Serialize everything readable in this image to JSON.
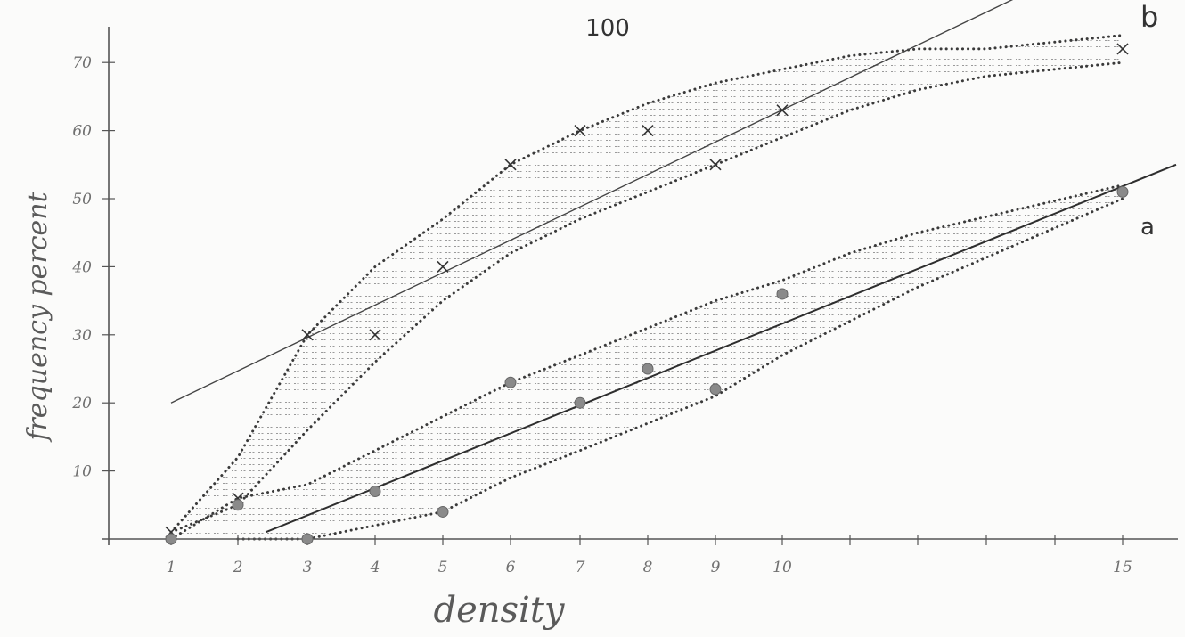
{
  "chart_data": {
    "type": "scatter",
    "title": "100",
    "xlabel": "density",
    "ylabel": "frequency percent",
    "x_ticks": [
      "1",
      "2",
      "3",
      "4",
      "5",
      "6",
      "7",
      "8",
      "9",
      "10",
      "15"
    ],
    "y_ticks": [
      "10",
      "20",
      "30",
      "40",
      "50",
      "60",
      "70"
    ],
    "ylim": [
      0,
      75
    ],
    "grid": false,
    "series": [
      {
        "name": "b",
        "marker": "x",
        "points": [
          [
            1,
            1
          ],
          [
            2,
            6
          ],
          [
            3,
            30
          ],
          [
            4,
            30
          ],
          [
            5,
            40
          ],
          [
            6,
            55
          ],
          [
            7,
            60
          ],
          [
            8,
            60
          ],
          [
            9,
            55
          ],
          [
            10,
            63
          ],
          [
            15,
            72
          ]
        ],
        "fit_line": [
          [
            1,
            20
          ],
          [
            15,
            87
          ]
        ],
        "band_upper": [
          [
            1,
            1
          ],
          [
            2,
            12
          ],
          [
            3,
            30
          ],
          [
            4,
            40
          ],
          [
            5,
            47
          ],
          [
            6,
            55
          ],
          [
            7,
            60
          ],
          [
            8,
            64
          ],
          [
            9,
            67
          ],
          [
            10,
            69
          ],
          [
            11,
            71
          ],
          [
            12,
            72
          ],
          [
            13,
            72
          ],
          [
            15,
            74
          ]
        ],
        "band_lower": [
          [
            1,
            1
          ],
          [
            2,
            5
          ],
          [
            3,
            16
          ],
          [
            4,
            26
          ],
          [
            5,
            35
          ],
          [
            6,
            42
          ],
          [
            7,
            47
          ],
          [
            8,
            51
          ],
          [
            9,
            55
          ],
          [
            10,
            59
          ],
          [
            11,
            63
          ],
          [
            12,
            66
          ],
          [
            13,
            68
          ],
          [
            15,
            70
          ]
        ]
      },
      {
        "name": "a",
        "marker": "dot",
        "points": [
          [
            1,
            0
          ],
          [
            2,
            5
          ],
          [
            3,
            0
          ],
          [
            4,
            7
          ],
          [
            5,
            4
          ],
          [
            6,
            23
          ],
          [
            7,
            20
          ],
          [
            8,
            25
          ],
          [
            9,
            22
          ],
          [
            10,
            36
          ],
          [
            15,
            51
          ]
        ],
        "fit_line": [
          [
            2.4,
            1
          ],
          [
            16,
            55
          ]
        ],
        "band_upper": [
          [
            1,
            0
          ],
          [
            2,
            6
          ],
          [
            3,
            8
          ],
          [
            4,
            13
          ],
          [
            5,
            18
          ],
          [
            6,
            23
          ],
          [
            7,
            27
          ],
          [
            8,
            31
          ],
          [
            9,
            35
          ],
          [
            10,
            38
          ],
          [
            11,
            42
          ],
          [
            12,
            45
          ],
          [
            15,
            52
          ]
        ],
        "band_lower": [
          [
            2,
            0
          ],
          [
            3,
            0
          ],
          [
            4,
            2
          ],
          [
            5,
            4
          ],
          [
            6,
            9
          ],
          [
            7,
            13
          ],
          [
            8,
            17
          ],
          [
            9,
            21
          ],
          [
            10,
            27
          ],
          [
            11,
            32
          ],
          [
            12,
            37
          ],
          [
            15,
            50
          ]
        ]
      }
    ]
  }
}
